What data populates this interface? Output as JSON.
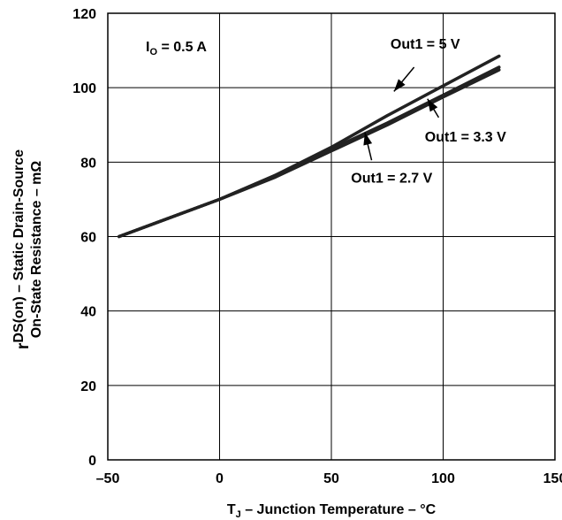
{
  "chart_data": {
    "type": "line",
    "xlabel": {
      "main": "T",
      "sub": "J",
      "rest": " – Junction Temperature – °C"
    },
    "ylabel": {
      "prefix": "r",
      "sub": "DS(on)",
      "line1_rest": " – Static Drain-Source",
      "line2": "On-State Resistance –  mΩ"
    },
    "xlim": [
      -50,
      150
    ],
    "ylim": [
      0,
      120
    ],
    "x_ticks": [
      "–50",
      "0",
      "50",
      "100",
      "150"
    ],
    "x_tick_values": [
      -50,
      0,
      50,
      100,
      150
    ],
    "y_ticks": [
      "0",
      "20",
      "40",
      "60",
      "80",
      "100",
      "120"
    ],
    "y_tick_values": [
      0,
      20,
      40,
      60,
      80,
      100,
      120
    ],
    "grid": true,
    "condition": {
      "main": "I",
      "sub": "O",
      "rest": " = 0.5 A"
    },
    "series": [
      {
        "name": "Out1 = 5 V",
        "x": [
          -45,
          0,
          25,
          50,
          75,
          100,
          125
        ],
        "y": [
          60,
          70,
          76.5,
          84,
          92.5,
          100.5,
          108.5
        ]
      },
      {
        "name": "Out1 = 3.3 V",
        "x": [
          -45,
          0,
          25,
          50,
          75,
          100,
          125
        ],
        "y": [
          60,
          70,
          76.5,
          83.5,
          90.5,
          98,
          105.5
        ]
      },
      {
        "name": "Out1 = 2.7 V",
        "x": [
          -45,
          0,
          25,
          50,
          75,
          100,
          125
        ],
        "y": [
          60,
          70,
          76,
          83,
          90,
          97.5,
          104.8
        ]
      }
    ],
    "annotations": [
      {
        "series": 0,
        "text": "Out1 = 5 V",
        "text_x": 92,
        "text_y": 110.5,
        "arrow_from": [
          87,
          105.5
        ],
        "arrow_to": [
          78,
          99
        ]
      },
      {
        "series": 1,
        "text": "Out1 = 3.3 V",
        "text_x": 110,
        "text_y": 85.5,
        "arrow_from": [
          98,
          92
        ],
        "arrow_to": [
          93,
          97
        ]
      },
      {
        "series": 2,
        "text": "Out1 = 2.7 V",
        "text_x": 77,
        "text_y": 74.5,
        "arrow_from": [
          68,
          80.5
        ],
        "arrow_to": [
          65,
          88
        ]
      }
    ],
    "colors": {
      "line": "#222222",
      "axes": "#000000",
      "grid": "#000000"
    }
  }
}
